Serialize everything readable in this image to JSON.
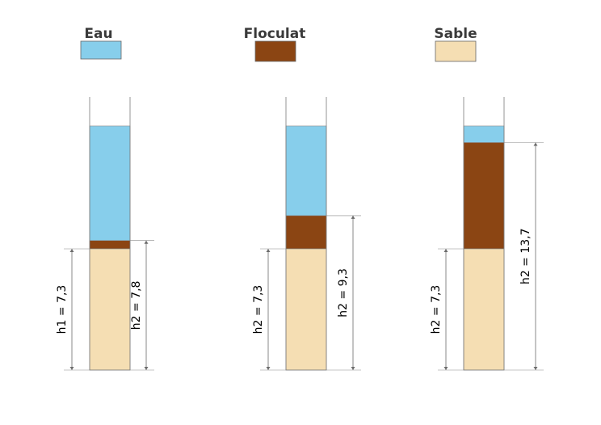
{
  "legend": [
    {
      "label": "Eau",
      "color": "#87CEEB"
    },
    {
      "label": "Floculat",
      "color": "#8B4513"
    },
    {
      "label": "Sable",
      "color": "#F5DEB3"
    }
  ],
  "tubes": [
    {
      "left_label": "h1 = 7,3",
      "right_label": "h2 = 7,8",
      "sand": 7.3,
      "floc_top": 7.8
    },
    {
      "left_label": "h2 = 7,3",
      "right_label": "h2 = 9,3",
      "sand": 7.3,
      "floc_top": 9.3
    },
    {
      "left_label": "h2 = 7,3",
      "right_label": "h2 = 13,7",
      "sand": 7.3,
      "floc_top": 13.7
    }
  ],
  "water_top": 14.7
}
